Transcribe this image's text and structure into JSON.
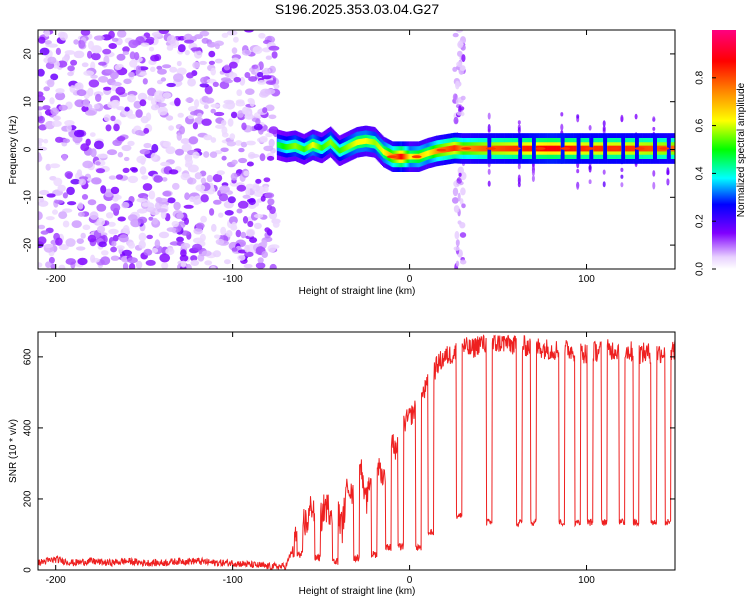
{
  "title": "S196.2025.353.03.04.G27",
  "chart_data": [
    {
      "type": "heatmap",
      "title": "S196.2025.353.03.04.G27",
      "xlabel": "Height of straight line (km)",
      "ylabel": "Frequency (Hz)",
      "xlim": [
        -210,
        150
      ],
      "ylim": [
        -25,
        25
      ],
      "xticks": [
        -200,
        -100,
        0,
        100
      ],
      "yticks": [
        -20,
        -10,
        0,
        10,
        20
      ],
      "colorbar": {
        "label": "Normalized spectral amplitude",
        "range": [
          0,
          1
        ],
        "ticks": [
          "0.0",
          "0.2",
          "0.4",
          "0.6",
          "0.8"
        ],
        "tick_values": [
          0,
          0.2,
          0.4,
          0.6,
          0.8
        ]
      },
      "noise_region_x": [
        -210,
        -75
      ],
      "burst_x": 28,
      "ridge": {
        "x": [
          -75,
          -70,
          -65,
          -60,
          -55,
          -50,
          -45,
          -40,
          -35,
          -30,
          -25,
          -20,
          -15,
          -10,
          -5,
          0,
          5,
          10,
          15,
          20,
          25,
          30,
          40,
          60,
          80,
          100,
          120,
          150
        ],
        "freq": [
          1.0,
          0.5,
          0.8,
          0.0,
          1.0,
          0.3,
          1.6,
          -0.3,
          0.6,
          1.5,
          1.8,
          1.5,
          -0.5,
          -1.5,
          -1.5,
          -1.5,
          -1.5,
          -0.8,
          -0.3,
          0.0,
          0.3,
          0.2,
          0.2,
          0.2,
          0.2,
          0.2,
          0.2,
          0.2
        ],
        "amp": [
          0.45,
          0.5,
          0.55,
          0.5,
          0.6,
          0.5,
          0.55,
          0.5,
          0.55,
          0.6,
          0.6,
          0.55,
          0.6,
          0.7,
          0.85,
          0.6,
          0.65,
          0.6,
          0.7,
          0.75,
          0.8,
          0.7,
          0.75,
          0.8,
          0.85,
          0.8,
          0.8,
          0.75
        ]
      },
      "dropouts_x": [
        45,
        62,
        70,
        86,
        95,
        102,
        110,
        120,
        128,
        138,
        146
      ]
    },
    {
      "type": "line",
      "xlabel": "Height of straight line (km)",
      "ylabel": "SNR (10 * v/v)",
      "xlim": [
        -210,
        150
      ],
      "ylim": [
        0,
        670
      ],
      "xticks": [
        -200,
        -100,
        0,
        100
      ],
      "yticks": [
        0,
        200,
        400,
        600
      ],
      "color": "#ee2020",
      "series": [
        {
          "name": "SNR",
          "x": [
            -210,
            -200,
            -190,
            -180,
            -170,
            -160,
            -150,
            -140,
            -130,
            -120,
            -110,
            -100,
            -90,
            -80,
            -70,
            -65,
            -62,
            -58,
            -55,
            -52,
            -48,
            -45,
            -42,
            -38,
            -35,
            -32,
            -28,
            -25,
            -22,
            -20,
            -18,
            -15,
            -12,
            -10,
            -8,
            -5,
            -2,
            0,
            3,
            6,
            10,
            13,
            16,
            20,
            25,
            30,
            35,
            40,
            45,
            50,
            55,
            60,
            70,
            80,
            90,
            100,
            110,
            120,
            130,
            140,
            150
          ],
          "y": [
            20,
            30,
            20,
            25,
            20,
            25,
            20,
            20,
            25,
            25,
            20,
            20,
            15,
            10,
            10,
            70,
            150,
            130,
            190,
            110,
            180,
            170,
            180,
            120,
            250,
            200,
            320,
            180,
            260,
            350,
            300,
            260,
            300,
            380,
            330,
            400,
            420,
            430,
            450,
            480,
            520,
            550,
            580,
            600,
            610,
            630,
            620,
            640,
            630,
            640,
            640,
            630,
            630,
            620,
            620,
            610,
            620,
            620,
            610,
            610,
            620
          ]
        }
      ],
      "dropouts": [
        {
          "x": -62,
          "min": 40
        },
        {
          "x": -52,
          "min": 30
        },
        {
          "x": -42,
          "min": 20
        },
        {
          "x": -30,
          "min": 30
        },
        {
          "x": -20,
          "min": 40
        },
        {
          "x": -12,
          "min": 60
        },
        {
          "x": -5,
          "min": 60
        },
        {
          "x": 5,
          "min": 60
        },
        {
          "x": 12,
          "min": 100
        },
        {
          "x": 28,
          "min": 150
        },
        {
          "x": 45,
          "min": 130
        },
        {
          "x": 62,
          "min": 130
        },
        {
          "x": 70,
          "min": 130
        },
        {
          "x": 86,
          "min": 130
        },
        {
          "x": 95,
          "min": 130
        },
        {
          "x": 102,
          "min": 130
        },
        {
          "x": 110,
          "min": 130
        },
        {
          "x": 120,
          "min": 130
        },
        {
          "x": 128,
          "min": 130
        },
        {
          "x": 138,
          "min": 130
        },
        {
          "x": 146,
          "min": 130
        }
      ]
    }
  ]
}
